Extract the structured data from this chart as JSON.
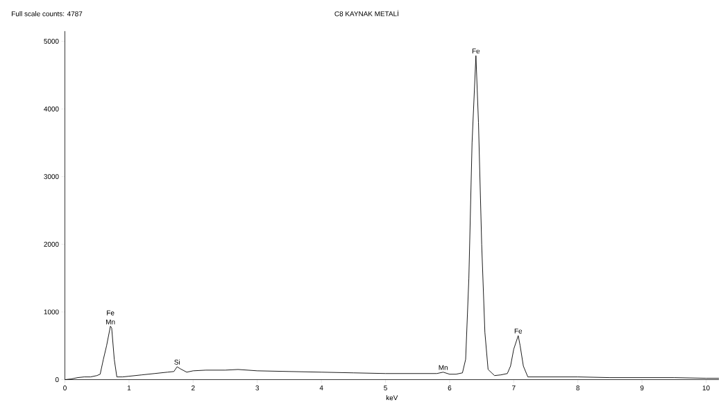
{
  "chart_data": {
    "type": "line",
    "title": "C8 KAYNAK METALİ",
    "xlabel": "keV",
    "annotations": [
      "Full scale counts: 4787",
      {
        "text": "Mn",
        "x": 0.71,
        "y": 785
      },
      {
        "text": "Fe",
        "x": 0.71,
        "y": 785
      },
      {
        "text": "Si",
        "x": 1.75,
        "y": 190
      },
      {
        "text": "Mn",
        "x": 5.9,
        "y": 110
      },
      {
        "text": "Fe",
        "x": 6.41,
        "y": 4787
      },
      {
        "text": "Fe",
        "x": 7.07,
        "y": 650
      }
    ],
    "x": [
      0,
      0.1,
      0.2,
      0.3,
      0.4,
      0.5,
      0.55,
      0.6,
      0.65,
      0.71,
      0.73,
      0.77,
      0.81,
      0.9,
      1.0,
      1.2,
      1.4,
      1.6,
      1.7,
      1.75,
      1.8,
      1.9,
      2.0,
      2.2,
      2.5,
      2.7,
      3.0,
      3.5,
      4.0,
      4.5,
      5.0,
      5.5,
      5.8,
      5.9,
      6.0,
      6.1,
      6.2,
      6.25,
      6.3,
      6.35,
      6.41,
      6.45,
      6.5,
      6.55,
      6.6,
      6.7,
      6.8,
      6.9,
      6.95,
      7.0,
      7.07,
      7.1,
      7.15,
      7.22,
      7.5,
      8.0,
      8.5,
      9.0,
      9.5,
      10.0,
      10.2
    ],
    "values": [
      0,
      10,
      30,
      40,
      40,
      60,
      80,
      300,
      500,
      790,
      760,
      300,
      40,
      40,
      50,
      70,
      90,
      110,
      120,
      190,
      160,
      110,
      130,
      140,
      140,
      150,
      130,
      120,
      110,
      100,
      90,
      90,
      90,
      110,
      80,
      80,
      100,
      300,
      1500,
      3500,
      4787,
      3800,
      2000,
      700,
      150,
      60,
      70,
      90,
      200,
      450,
      650,
      500,
      200,
      40,
      40,
      40,
      30,
      30,
      30,
      20,
      20
    ],
    "color": "#000000",
    "xlim": [
      0,
      10.2
    ],
    "ylim": [
      0,
      5150
    ],
    "xticks": [
      0,
      1,
      2,
      3,
      4,
      5,
      6,
      7,
      8,
      9,
      10
    ],
    "yticks": [
      0,
      1000,
      2000,
      3000,
      4000,
      5000
    ],
    "grid": false,
    "marker": "none",
    "line_style": "solid"
  }
}
